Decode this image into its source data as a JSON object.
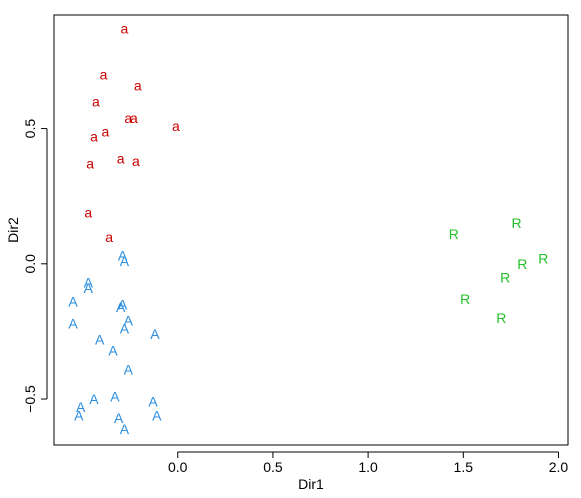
{
  "chart_data": {
    "type": "scatter",
    "xlabel": "Dir1",
    "ylabel": "Dir2",
    "xlim": [
      -0.65,
      2.05
    ],
    "ylim": [
      -0.67,
      0.92
    ],
    "x_ticks": [
      0.0,
      0.5,
      1.0,
      1.5,
      2.0
    ],
    "x_tick_labels": [
      "0.0",
      "0.5",
      "1.0",
      "1.5",
      "2.0"
    ],
    "y_ticks": [
      -0.5,
      0.0,
      0.5
    ],
    "y_tick_labels": [
      "−0.5",
      "0.0",
      "0.5"
    ],
    "grid": false,
    "series": [
      {
        "label": "a",
        "color": "#cc0000",
        "points": [
          [
            -0.28,
            0.87
          ],
          [
            -0.39,
            0.7
          ],
          [
            -0.21,
            0.66
          ],
          [
            -0.43,
            0.6
          ],
          [
            -0.26,
            0.54
          ],
          [
            -0.23,
            0.54
          ],
          [
            -0.01,
            0.51
          ],
          [
            -0.38,
            0.49
          ],
          [
            -0.44,
            0.47
          ],
          [
            -0.3,
            0.39
          ],
          [
            -0.22,
            0.38
          ],
          [
            -0.46,
            0.37
          ],
          [
            -0.47,
            0.19
          ],
          [
            -0.36,
            0.1
          ]
        ]
      },
      {
        "label": "A",
        "color": "#2b8ee0",
        "points": [
          [
            -0.29,
            0.03
          ],
          [
            -0.28,
            0.01
          ],
          [
            -0.47,
            -0.07
          ],
          [
            -0.47,
            -0.09
          ],
          [
            -0.55,
            -0.14
          ],
          [
            -0.29,
            -0.15
          ],
          [
            -0.3,
            -0.16
          ],
          [
            -0.55,
            -0.22
          ],
          [
            -0.26,
            -0.21
          ],
          [
            -0.28,
            -0.24
          ],
          [
            -0.12,
            -0.26
          ],
          [
            -0.41,
            -0.28
          ],
          [
            -0.34,
            -0.32
          ],
          [
            -0.26,
            -0.39
          ],
          [
            -0.33,
            -0.49
          ],
          [
            -0.44,
            -0.5
          ],
          [
            -0.13,
            -0.51
          ],
          [
            -0.51,
            -0.53
          ],
          [
            -0.52,
            -0.56
          ],
          [
            -0.11,
            -0.56
          ],
          [
            -0.31,
            -0.57
          ],
          [
            -0.28,
            -0.61
          ]
        ]
      },
      {
        "label": "R",
        "color": "#22c02a",
        "points": [
          [
            1.45,
            0.11
          ],
          [
            1.78,
            0.15
          ],
          [
            1.92,
            0.02
          ],
          [
            1.81,
            0.0
          ],
          [
            1.72,
            -0.05
          ],
          [
            1.51,
            -0.13
          ],
          [
            1.7,
            -0.2
          ]
        ]
      }
    ]
  }
}
